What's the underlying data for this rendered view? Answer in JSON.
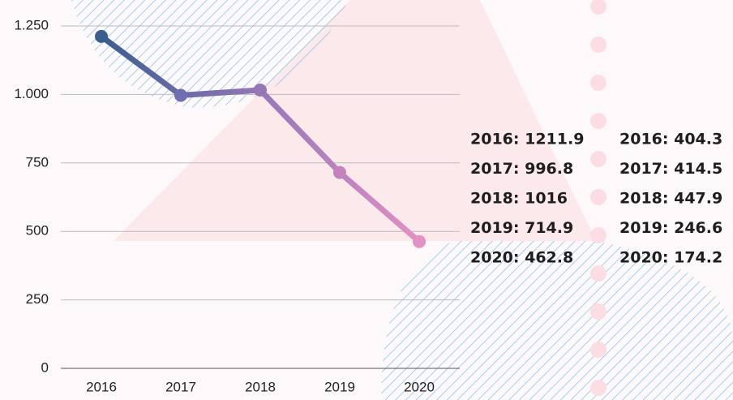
{
  "chart_data": {
    "type": "line",
    "categories": [
      "2016",
      "2017",
      "2018",
      "2019",
      "2020"
    ],
    "series": [
      {
        "values": [
          1211.9,
          996.8,
          1016,
          714.9,
          462.8
        ],
        "value_labels": [
          "2016: 1211.9",
          "2017: 996.8",
          "2018: 1016",
          "2019: 714.9",
          "2020: 462.8"
        ],
        "point_colors": [
          "#3b5e8f",
          "#6f6eb0",
          "#9577b8",
          "#c483bd",
          "#e191c3"
        ]
      },
      {
        "values": [
          404.3,
          414.5,
          447.9,
          246.6,
          174.2
        ],
        "value_labels": [
          "2016: 404.3",
          "2017: 414.5",
          "2018: 447.9",
          "2019: 246.6",
          "2020: 174.2"
        ]
      }
    ],
    "ylim": [
      0,
      1250
    ],
    "yticks": [
      0,
      250,
      500,
      750,
      {
        "value": 1000,
        "label": "1.000"
      },
      {
        "value": 1250,
        "label": "1.250"
      }
    ],
    "grid": true
  }
}
